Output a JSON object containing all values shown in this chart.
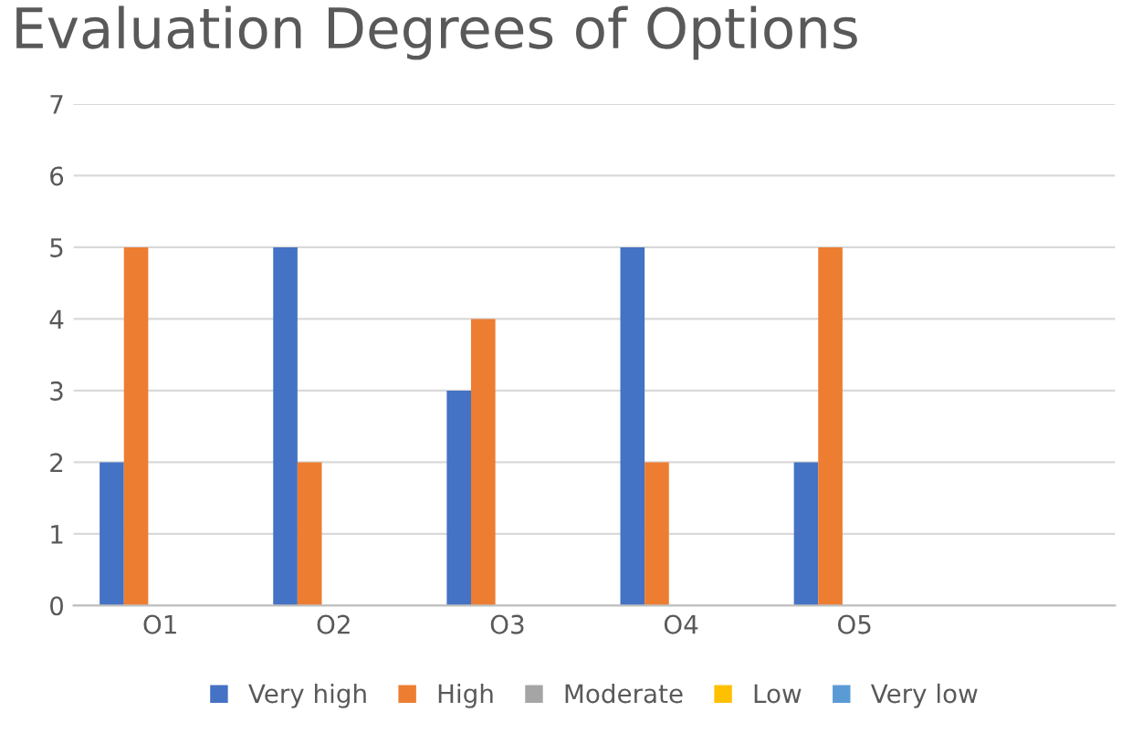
{
  "chart_data": {
    "type": "bar",
    "title": "Evaluation Degrees of Options",
    "categories": [
      "O1",
      "O2",
      "O3",
      "O4",
      "O5",
      null
    ],
    "series": [
      {
        "name": "Very high",
        "color": "#4472c4",
        "values": [
          2,
          5,
          3,
          5,
          2,
          null
        ]
      },
      {
        "name": "High",
        "color": "#ed7d31",
        "values": [
          5,
          2,
          4,
          2,
          5,
          null
        ]
      },
      {
        "name": "Moderate",
        "color": "#a5a5a5",
        "values": [
          0,
          0,
          0,
          0,
          0,
          null
        ]
      },
      {
        "name": "Low",
        "color": "#ffc000",
        "values": [
          0,
          0,
          0,
          0,
          0,
          null
        ]
      },
      {
        "name": "Very low",
        "color": "#5b9bd5",
        "values": [
          0,
          0,
          0,
          0,
          0,
          null
        ]
      }
    ],
    "ylim": [
      0,
      7
    ],
    "yticks": [
      0,
      1,
      2,
      3,
      4,
      5,
      6,
      7
    ],
    "grid": "y",
    "legend": "bottom"
  }
}
